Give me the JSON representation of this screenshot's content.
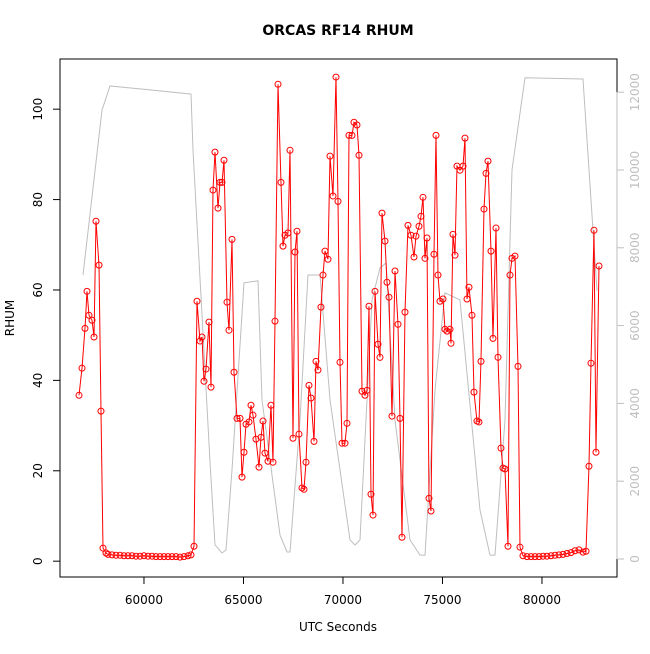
{
  "chart_data": {
    "type": "line",
    "title": "ORCAS RF14 RHUM",
    "x_label": "UTC Seconds",
    "y_label": "RHUM",
    "xlim": [
      55780,
      83770
    ],
    "xticks": [
      60000,
      65000,
      70000,
      75000,
      80000
    ],
    "ylim": [
      -3.5,
      111.1
    ],
    "yticks": [
      0,
      20,
      40,
      60,
      80,
      100
    ],
    "y2lim": [
      -463,
      12853
    ],
    "y2ticks": [
      0,
      2000,
      4000,
      6000,
      8000,
      10000,
      12000
    ],
    "series": [
      {
        "color": "#ff0000",
        "markers": true,
        "x": [
          56735,
          56886,
          57036,
          57137,
          57237,
          57388,
          57489,
          57589,
          57740,
          57840,
          57941,
          58092,
          58192,
          58393,
          58594,
          58795,
          58996,
          59197,
          59398,
          59599,
          59800,
          60001,
          60202,
          60403,
          60604,
          60805,
          61006,
          61207,
          61408,
          61609,
          61810,
          62011,
          62212,
          62363,
          62514,
          62664,
          62815,
          62916,
          63016,
          63117,
          63267,
          63368,
          63468,
          63569,
          63720,
          63820,
          63921,
          64021,
          64172,
          64272,
          64423,
          64524,
          64674,
          64825,
          64926,
          65026,
          65127,
          65277,
          65378,
          65478,
          65629,
          65780,
          65880,
          65981,
          66081,
          66232,
          66383,
          66483,
          66584,
          66735,
          66885,
          66986,
          67086,
          67237,
          67338,
          67488,
          67589,
          67689,
          67790,
          67941,
          68041,
          68142,
          68292,
          68393,
          68544,
          68644,
          68745,
          68895,
          68996,
          69096,
          69247,
          69348,
          69498,
          69649,
          69750,
          69850,
          69951,
          70101,
          70202,
          70302,
          70453,
          70554,
          70704,
          70805,
          70956,
          71106,
          71207,
          71307,
          71408,
          71508,
          71609,
          71760,
          71860,
          71961,
          72111,
          72212,
          72312,
          72463,
          72614,
          72765,
          72865,
          72966,
          73116,
          73267,
          73418,
          73569,
          73669,
          73820,
          73920,
          74021,
          74121,
          74222,
          74322,
          74423,
          74574,
          74674,
          74775,
          74875,
          75026,
          75126,
          75227,
          75378,
          75428,
          75528,
          75629,
          75729,
          75880,
          76031,
          76131,
          76232,
          76332,
          76483,
          76584,
          76734,
          76835,
          76935,
          77086,
          77187,
          77287,
          77438,
          77538,
          77689,
          77790,
          77940,
          78041,
          78141,
          78292,
          78393,
          78493,
          78644,
          78795,
          78895,
          79046,
          79247,
          79448,
          79649,
          79850,
          80051,
          80252,
          80453,
          80654,
          80855,
          81056,
          81257,
          81458,
          81659,
          81860,
          82061,
          82212,
          82362,
          82463,
          82614,
          82714,
          82865
        ],
        "values": [
          36.7,
          42.7,
          51.5,
          59.7,
          54.4,
          53.3,
          49.6,
          75.2,
          65.5,
          33.2,
          2.9,
          1.8,
          1.5,
          1.4,
          1.3,
          1.3,
          1.2,
          1.2,
          1.2,
          1.1,
          1.1,
          1.2,
          1.1,
          1.1,
          1.0,
          1.0,
          1.0,
          1.0,
          1.0,
          1.0,
          0.9,
          1.0,
          1.2,
          1.4,
          3.3,
          57.5,
          48.7,
          49.6,
          39.8,
          42.5,
          52.9,
          38.5,
          82.1,
          90.5,
          78.1,
          83.8,
          83.8,
          88.7,
          57.3,
          51.1,
          71.2,
          41.8,
          31.6,
          31.6,
          18.6,
          24.1,
          30.3,
          30.8,
          34.5,
          32.3,
          27.0,
          20.8,
          27.4,
          31.0,
          23.9,
          22.1,
          34.5,
          21.9,
          53.1,
          105.5,
          83.8,
          69.7,
          72.1,
          72.6,
          90.9,
          27.2,
          68.4,
          73.0,
          28.1,
          16.2,
          15.9,
          21.9,
          38.9,
          36.1,
          26.5,
          44.2,
          42.3,
          56.2,
          63.3,
          68.6,
          66.8,
          89.6,
          80.8,
          107.1,
          79.6,
          44.0,
          26.1,
          26.1,
          30.5,
          94.2,
          94.2,
          97.1,
          96.5,
          89.8,
          37.6,
          36.7,
          37.8,
          56.4,
          14.8,
          10.2,
          59.7,
          48.0,
          45.1,
          77.0,
          70.8,
          61.7,
          58.4,
          32.1,
          64.2,
          52.4,
          31.6,
          5.3,
          55.1,
          74.3,
          72.1,
          67.3,
          71.9,
          74.1,
          76.3,
          80.5,
          67.0,
          71.5,
          13.9,
          11.1,
          67.9,
          94.2,
          63.3,
          57.5,
          58.0,
          51.3,
          50.9,
          51.3,
          48.2,
          72.3,
          67.7,
          87.4,
          86.5,
          87.4,
          93.6,
          58.0,
          60.6,
          54.4,
          37.4,
          31.0,
          30.8,
          44.2,
          77.9,
          85.8,
          88.5,
          68.6,
          49.3,
          73.7,
          45.1,
          25.0,
          20.6,
          20.4,
          3.3,
          63.3,
          67.0,
          67.5,
          43.1,
          3.1,
          1.2,
          1.0,
          1.0,
          1.0,
          1.0,
          1.1,
          1.1,
          1.2,
          1.3,
          1.4,
          1.5,
          1.7,
          1.9,
          2.3,
          2.5,
          2.0,
          2.2,
          21.0,
          43.8,
          73.2,
          24.1,
          65.3
        ]
      },
      {
        "color": "#bebebe",
        "axis": "y2",
        "x": [
          56936,
          57891,
          58293,
          60303,
          62363,
          62464,
          63318,
          63569,
          63921,
          64122,
          64423,
          65026,
          65730,
          65931,
          66835,
          67187,
          67338,
          67840,
          68242,
          68845,
          69348,
          70353,
          70604,
          70855,
          71458,
          71860,
          72162,
          72614,
          73368,
          73870,
          74121,
          74624,
          75126,
          75880,
          76885,
          77388,
          77639,
          78141,
          78493,
          79146,
          82061,
          82764
        ],
        "values": [
          7300,
          11540,
          12160,
          12060,
          11950,
          10500,
          2500,
          360,
          154,
          230,
          2290,
          7100,
          7150,
          4090,
          617,
          180,
          180,
          3570,
          7300,
          7300,
          4090,
          490,
          360,
          490,
          6660,
          7480,
          7610,
          3570,
          490,
          100,
          100,
          4340,
          6840,
          6660,
          1260,
          100,
          100,
          3570,
          10000,
          12370,
          12340,
          6900
        ]
      }
    ]
  }
}
